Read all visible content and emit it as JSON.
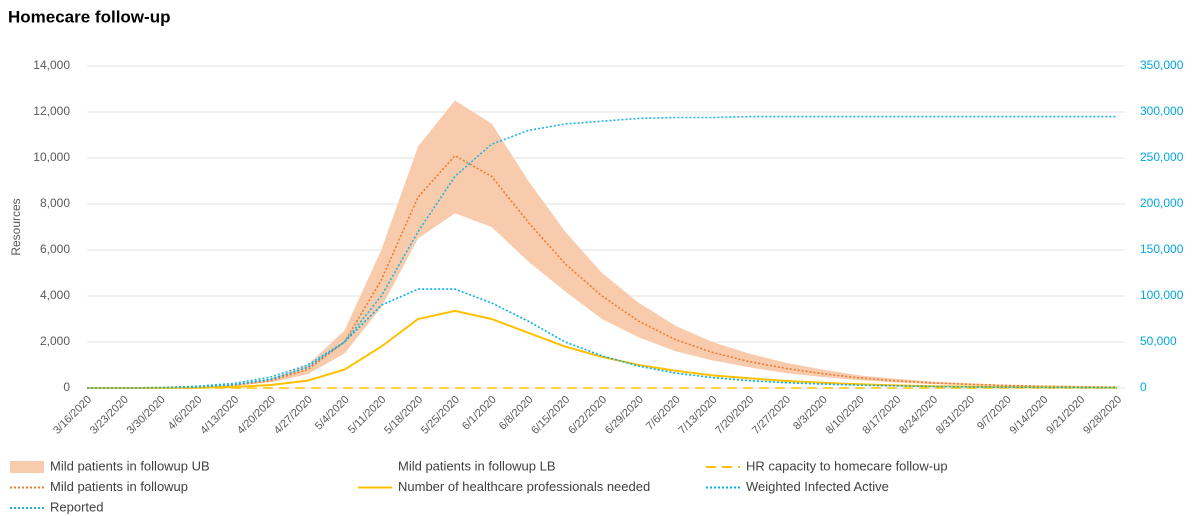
{
  "chart_data": {
    "type": "line",
    "title": "Homecare follow-up",
    "y_label": "Resources",
    "categories": [
      "3/16/2020",
      "3/23/2020",
      "3/30/2020",
      "4/6/2020",
      "4/13/2020",
      "4/20/2020",
      "4/27/2020",
      "5/4/2020",
      "5/11/2020",
      "5/18/2020",
      "5/25/2020",
      "6/1/2020",
      "6/8/2020",
      "6/15/2020",
      "6/22/2020",
      "6/29/2020",
      "7/6/2020",
      "7/13/2020",
      "7/20/2020",
      "7/27/2020",
      "8/3/2020",
      "8/10/2020",
      "8/17/2020",
      "8/24/2020",
      "8/31/2020",
      "9/7/2020",
      "9/14/2020",
      "9/21/2020",
      "9/28/2020"
    ],
    "ylim": [
      0,
      14000
    ],
    "yticks": [
      {
        "value": 0,
        "label": "0"
      },
      {
        "value": 2000,
        "label": "2,000"
      },
      {
        "value": 4000,
        "label": "4,000"
      },
      {
        "value": 6000,
        "label": "6,000"
      },
      {
        "value": 8000,
        "label": "8,000"
      },
      {
        "value": 10000,
        "label": "10,000"
      },
      {
        "value": 12000,
        "label": "12,000"
      },
      {
        "value": 14000,
        "label": "14,000"
      }
    ],
    "y2lim": [
      0,
      350000
    ],
    "y2ticks": [
      {
        "value": 0,
        "label": "0"
      },
      {
        "value": 50000,
        "label": "50,000"
      },
      {
        "value": 100000,
        "label": "100,000"
      },
      {
        "value": 150000,
        "label": "150,000"
      },
      {
        "value": 200000,
        "label": "200,000"
      },
      {
        "value": 250000,
        "label": "250,000"
      },
      {
        "value": 300000,
        "label": "300,000"
      },
      {
        "value": 350000,
        "label": "350,000"
      }
    ],
    "grid": true,
    "series": [
      {
        "name": "Mild patients in followup UB",
        "color": "#f8cbad",
        "style": "area",
        "values": [
          0,
          0,
          10,
          50,
          150,
          400,
          1000,
          2500,
          6000,
          10500,
          12500,
          11500,
          9000,
          6800,
          5000,
          3700,
          2700,
          2000,
          1500,
          1100,
          800,
          550,
          400,
          280,
          200,
          140,
          100,
          70,
          50
        ]
      },
      {
        "name": "Mild patients in followup LB",
        "color": "#ffffff",
        "style": "area",
        "values": [
          0,
          0,
          5,
          30,
          100,
          250,
          600,
          1500,
          3500,
          6500,
          7600,
          7000,
          5500,
          4200,
          3000,
          2200,
          1600,
          1200,
          900,
          650,
          480,
          340,
          240,
          170,
          120,
          85,
          60,
          40,
          30
        ]
      },
      {
        "name": "HR capacity to homecare follow-up",
        "color": "#ffc000",
        "style": "dashed",
        "values": [
          0,
          0,
          0,
          0,
          0,
          0,
          0,
          0,
          0,
          0,
          0,
          0,
          0,
          0,
          0,
          0,
          0,
          0,
          0,
          0,
          0,
          0,
          0,
          0,
          0,
          0,
          0,
          0,
          0
        ]
      },
      {
        "name": "Mild patients in followup",
        "color": "#ed7d31",
        "style": "dotted",
        "values": [
          0,
          0,
          8,
          40,
          120,
          320,
          800,
          2000,
          4700,
          8300,
          10100,
          9200,
          7200,
          5400,
          4000,
          2900,
          2100,
          1550,
          1150,
          850,
          620,
          440,
          310,
          220,
          160,
          110,
          80,
          55,
          40
        ]
      },
      {
        "name": "Number of healthcare professionals needed",
        "color": "#ffc000",
        "style": "solid",
        "values": [
          0,
          0,
          3,
          15,
          50,
          130,
          320,
          800,
          1800,
          3000,
          3350,
          3000,
          2400,
          1800,
          1350,
          1000,
          750,
          550,
          420,
          310,
          230,
          160,
          115,
          80,
          60,
          40,
          30,
          20,
          15
        ]
      },
      {
        "name": "Weighted Infected Active",
        "color": "#00b0f0",
        "style": "dotted",
        "values": [
          0,
          0,
          10,
          40,
          150,
          380,
          900,
          2000,
          3600,
          4300,
          4300,
          3700,
          2900,
          2000,
          1400,
          950,
          650,
          450,
          320,
          230,
          170,
          120,
          90,
          65,
          45,
          35,
          25,
          20,
          15
        ]
      },
      {
        "name": "Reported",
        "color": "#1fb5d9",
        "style": "dotted",
        "axis": "y2",
        "values": [
          0,
          0,
          500,
          2000,
          5000,
          12000,
          25000,
          50000,
          100000,
          170000,
          230000,
          265000,
          280000,
          287000,
          290000,
          293000,
          294000,
          294000,
          295000,
          295000,
          295000,
          295000,
          295000,
          295000,
          295000,
          295000,
          295000,
          295000,
          295000
        ]
      }
    ]
  }
}
